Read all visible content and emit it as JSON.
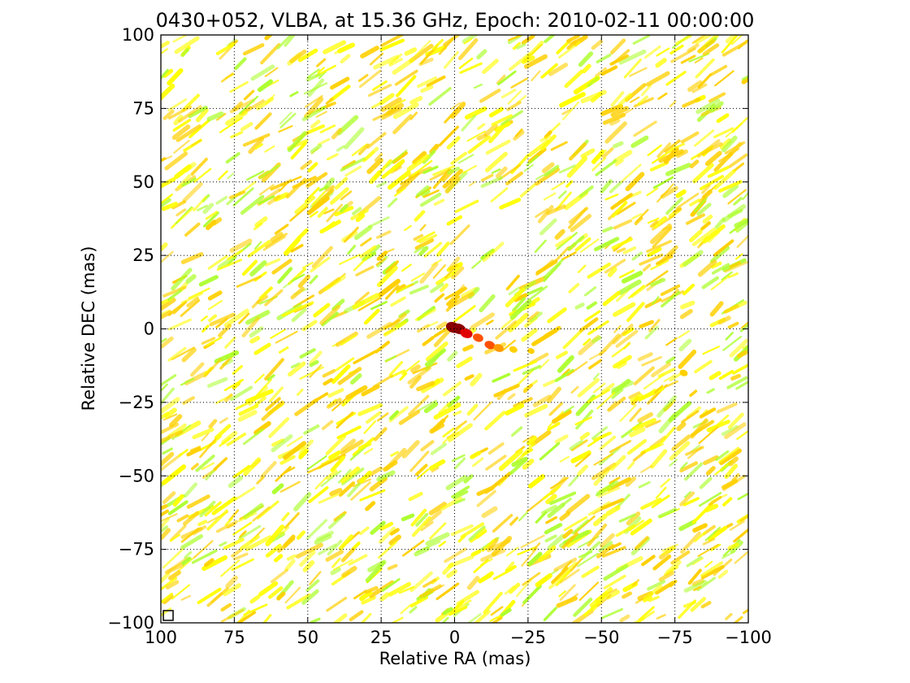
{
  "chart_data": {
    "type": "heatmap",
    "title": "0430+052, VLBA, at 15.36 GHz, Epoch: 2010-02-11 00:00:00",
    "xlabel": "Relative RA (mas)",
    "ylabel": "Relative DEC (mas)",
    "xlim": [
      100,
      -100
    ],
    "ylim": [
      -100,
      100
    ],
    "x_inverted": true,
    "x_ticks": [
      100,
      75,
      50,
      25,
      0,
      -25,
      -50,
      -75,
      -100
    ],
    "x_tick_labels": [
      "100",
      "75",
      "50",
      "25",
      "0",
      "−25",
      "−50",
      "−75",
      "−100"
    ],
    "y_ticks": [
      100,
      75,
      50,
      25,
      0,
      -25,
      -50,
      -75,
      -100
    ],
    "y_tick_labels": [
      "100",
      "75",
      "50",
      "25",
      "0",
      "−25",
      "−50",
      "−75",
      "−100"
    ],
    "grid": true,
    "colormap": [
      "#adff2f",
      "#ffff00",
      "#ffd000",
      "#ff9a00",
      "#ff5000",
      "#e00000",
      "#8b0000"
    ],
    "background_noise": {
      "pattern": "diagonal streaks",
      "colors": [
        "#adff2f",
        "#ffff00",
        "#ffd000"
      ]
    },
    "source_components": [
      {
        "ra": 0.5,
        "dec": 0.5,
        "intensity": 1.0
      },
      {
        "ra": -1.5,
        "dec": 0.0,
        "intensity": 0.95
      },
      {
        "ra": -4.0,
        "dec": -1.5,
        "intensity": 0.8
      },
      {
        "ra": -8.0,
        "dec": -3.0,
        "intensity": 0.6
      },
      {
        "ra": -12.0,
        "dec": -5.5,
        "intensity": 0.6
      },
      {
        "ra": -15.0,
        "dec": -6.5,
        "intensity": 0.55
      },
      {
        "ra": -20.0,
        "dec": -7.0,
        "intensity": 0.35
      },
      {
        "ra": -26.0,
        "dec": -7.5,
        "intensity": 0.25
      },
      {
        "ra": -78.0,
        "dec": -15.0,
        "intensity": 0.35
      }
    ],
    "beam": {
      "ra": 97.5,
      "dec": -97.5,
      "shape": "square"
    }
  }
}
